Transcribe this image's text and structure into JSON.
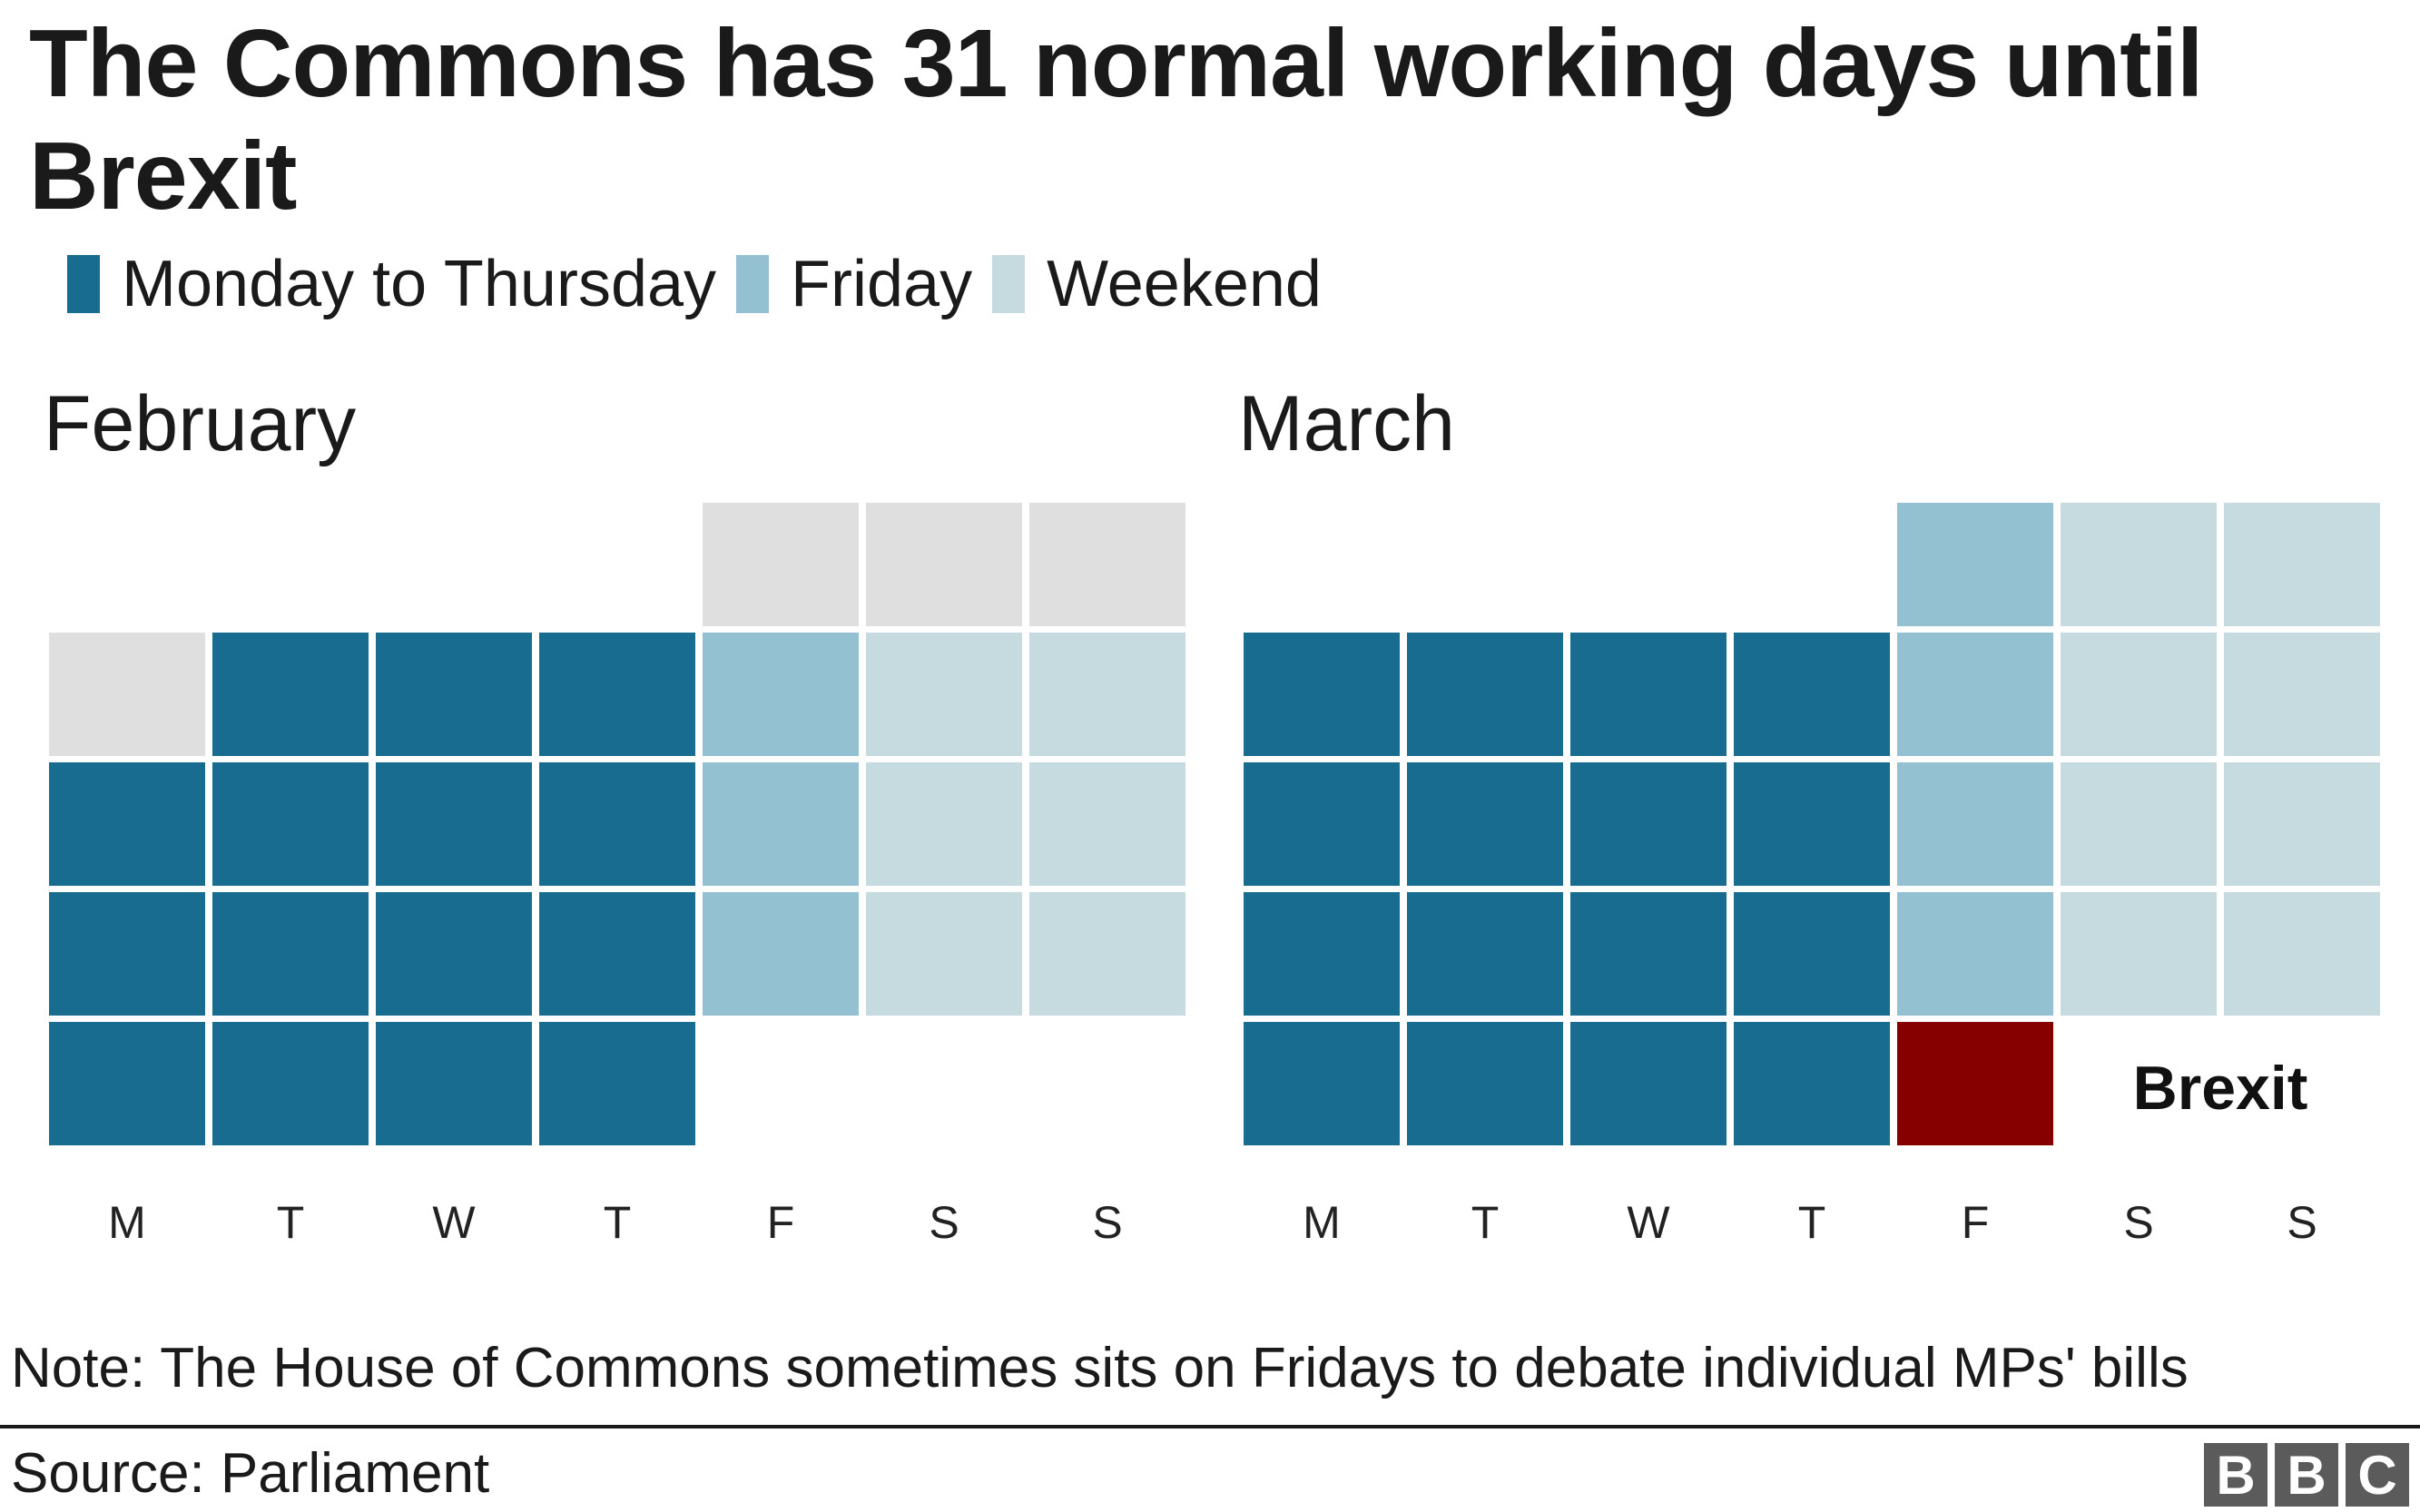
{
  "title": "The Commons has 31 normal working days until Brexit",
  "legend": [
    {
      "label": "Monday to Thursday",
      "color": "#176C8F"
    },
    {
      "label": "Friday",
      "color": "#93C1D1"
    },
    {
      "label": "Weekend",
      "color": "#C5DBDF"
    }
  ],
  "colors": {
    "mon_thu": "#176C8F",
    "friday": "#93C1D1",
    "weekend": "#C5DBDF",
    "outside_month": "#DFDFDF",
    "brexit": "#860000"
  },
  "weekday_labels": [
    "M",
    "T",
    "W",
    "T",
    "F",
    "S",
    "S"
  ],
  "months": [
    {
      "name": "February",
      "rows": [
        [
          "",
          "",
          "",
          "",
          "out",
          "out",
          "out"
        ],
        [
          "out",
          "mt",
          "mt",
          "mt",
          "fri",
          "we",
          "we"
        ],
        [
          "mt",
          "mt",
          "mt",
          "mt",
          "fri",
          "we",
          "we"
        ],
        [
          "mt",
          "mt",
          "mt",
          "mt",
          "fri",
          "we",
          "we"
        ],
        [
          "mt",
          "mt",
          "mt",
          "mt",
          "",
          "",
          ""
        ]
      ]
    },
    {
      "name": "March",
      "rows": [
        [
          "",
          "",
          "",
          "",
          "fri",
          "we",
          "we"
        ],
        [
          "mt",
          "mt",
          "mt",
          "mt",
          "fri",
          "we",
          "we"
        ],
        [
          "mt",
          "mt",
          "mt",
          "mt",
          "fri",
          "we",
          "we"
        ],
        [
          "mt",
          "mt",
          "mt",
          "mt",
          "fri",
          "we",
          "we"
        ],
        [
          "mt",
          "mt",
          "mt",
          "mt",
          "brexit",
          "",
          ""
        ]
      ],
      "annotation": "Brexit"
    }
  ],
  "note": "Note: The House of Commons sometimes sits on Fridays to debate individual MPs' bills",
  "source": "Source: Parliament",
  "logo": [
    "B",
    "B",
    "C"
  ],
  "chart_data": {
    "type": "heatmap",
    "title": "The Commons has 31 normal working days until Brexit",
    "legend": [
      "Monday to Thursday",
      "Friday",
      "Weekend"
    ],
    "x_labels": [
      "M",
      "T",
      "W",
      "T",
      "F",
      "S",
      "S"
    ],
    "months": [
      {
        "name": "February",
        "categories_by_row": [
          [
            null,
            null,
            null,
            null,
            "Outside month",
            "Outside month",
            "Outside month"
          ],
          [
            "Outside month",
            "Monday to Thursday",
            "Monday to Thursday",
            "Monday to Thursday",
            "Friday",
            "Weekend",
            "Weekend"
          ],
          [
            "Monday to Thursday",
            "Monday to Thursday",
            "Monday to Thursday",
            "Monday to Thursday",
            "Friday",
            "Weekend",
            "Weekend"
          ],
          [
            "Monday to Thursday",
            "Monday to Thursday",
            "Monday to Thursday",
            "Monday to Thursday",
            "Friday",
            "Weekend",
            "Weekend"
          ],
          [
            "Monday to Thursday",
            "Monday to Thursday",
            "Monday to Thursday",
            "Monday to Thursday",
            null,
            null,
            null
          ]
        ],
        "mon_thu_count": 15
      },
      {
        "name": "March",
        "categories_by_row": [
          [
            null,
            null,
            null,
            null,
            "Friday",
            "Weekend",
            "Weekend"
          ],
          [
            "Monday to Thursday",
            "Monday to Thursday",
            "Monday to Thursday",
            "Monday to Thursday",
            "Friday",
            "Weekend",
            "Weekend"
          ],
          [
            "Monday to Thursday",
            "Monday to Thursday",
            "Monday to Thursday",
            "Monday to Thursday",
            "Friday",
            "Weekend",
            "Weekend"
          ],
          [
            "Monday to Thursday",
            "Monday to Thursday",
            "Monday to Thursday",
            "Monday to Thursday",
            "Friday",
            "Weekend",
            "Weekend"
          ],
          [
            "Monday to Thursday",
            "Monday to Thursday",
            "Monday to Thursday",
            "Monday to Thursday",
            "Brexit",
            null,
            null
          ]
        ],
        "mon_thu_count": 16
      }
    ],
    "annotations": [
      "Brexit"
    ],
    "total_working_days": 31
  }
}
